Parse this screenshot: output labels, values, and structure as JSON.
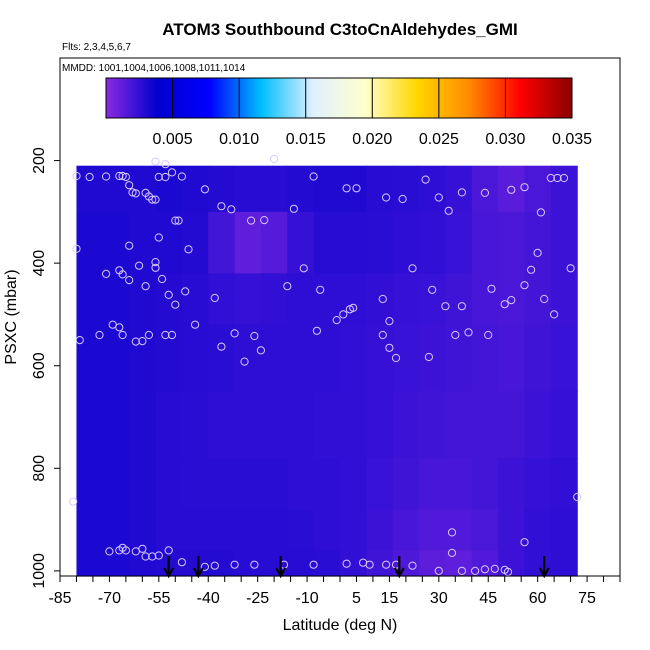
{
  "chart_data": {
    "type": "heatmap",
    "title": "ATOM3 Southbound C3toCnAldehydes_GMI",
    "subtitle_flights": "Flts: 2,3,4,5,6,7",
    "subtitle_dates": "MMDD: 1001,1004,1006,1008,1011,1014",
    "xlabel": "Latitude (deg N)",
    "ylabel": "PSXC (mbar)",
    "xlim": [
      -85,
      85
    ],
    "ylim": [
      1010,
      0
    ],
    "x_ticks": [
      -85,
      -70,
      -55,
      -40,
      -25,
      -10,
      5,
      15,
      30,
      45,
      60,
      75
    ],
    "y_ticks": [
      200,
      400,
      600,
      800,
      1000
    ],
    "colorbar": {
      "min": 0.0,
      "max": 0.035,
      "ticks": [
        0.005,
        0.01,
        0.015,
        0.02,
        0.025,
        0.03,
        0.035
      ],
      "tick_labels": [
        "0.005",
        "0.010",
        "0.015",
        "0.020",
        "0.025",
        "0.030",
        "0.035"
      ],
      "colors": [
        "#8a2be2",
        "#0000cd",
        "#0000ff",
        "#00bfff",
        "#e0f0ff",
        "#ffffcc",
        "#ffd700",
        "#ff8c00",
        "#ff0000",
        "#8b0000"
      ]
    },
    "field_lat_edges": [
      -80,
      -72,
      -64,
      -56,
      -48,
      -40,
      -32,
      -24,
      -16,
      -8,
      0,
      8,
      16,
      24,
      32,
      40,
      48,
      56,
      64,
      72
    ],
    "field_p_edges": [
      210,
      300,
      420,
      520,
      650,
      780,
      880,
      960,
      1010
    ],
    "field_values": [
      [
        0.003,
        0.003,
        0.003,
        0.0031,
        0.003,
        0.0029,
        0.0028,
        0.0028,
        0.0029,
        0.003,
        0.003,
        0.0028,
        0.0027,
        0.0026,
        0.0024,
        0.0018,
        0.0014,
        0.0018,
        0.0022
      ],
      [
        0.0031,
        0.0031,
        0.003,
        0.003,
        0.0029,
        0.002,
        0.0012,
        0.0015,
        0.0024,
        0.0028,
        0.0028,
        0.0027,
        0.0026,
        0.0025,
        0.0023,
        0.0019,
        0.0018,
        0.002,
        0.0022
      ],
      [
        0.0031,
        0.0031,
        0.003,
        0.0029,
        0.0028,
        0.0025,
        0.0024,
        0.0025,
        0.0026,
        0.0026,
        0.0026,
        0.0025,
        0.0024,
        0.0023,
        0.0021,
        0.0019,
        0.0018,
        0.002,
        0.0022
      ],
      [
        0.0031,
        0.0031,
        0.003,
        0.0029,
        0.0028,
        0.0027,
        0.0026,
        0.0026,
        0.0026,
        0.0026,
        0.0025,
        0.0024,
        0.0023,
        0.0022,
        0.0021,
        0.002,
        0.0019,
        0.0021,
        0.0023
      ],
      [
        0.0031,
        0.0031,
        0.003,
        0.0028,
        0.0027,
        0.0026,
        0.0026,
        0.0026,
        0.0026,
        0.0025,
        0.0025,
        0.0024,
        0.0022,
        0.0021,
        0.002,
        0.002,
        0.002,
        0.0022,
        0.0024
      ],
      [
        0.0031,
        0.0031,
        0.003,
        0.0028,
        0.0027,
        0.0027,
        0.0027,
        0.0027,
        0.0026,
        0.0026,
        0.0025,
        0.0023,
        0.0021,
        0.0019,
        0.0019,
        0.002,
        0.0022,
        0.0024,
        0.0025
      ],
      [
        0.0031,
        0.0031,
        0.003,
        0.0028,
        0.0028,
        0.0028,
        0.0028,
        0.0028,
        0.0027,
        0.0026,
        0.0025,
        0.0022,
        0.0019,
        0.0016,
        0.0016,
        0.0018,
        0.0022,
        0.0025,
        0.0026
      ],
      [
        0.0031,
        0.0031,
        0.003,
        0.0029,
        0.0029,
        0.0029,
        0.0028,
        0.0028,
        0.0028,
        0.0027,
        0.0025,
        0.0021,
        0.0017,
        0.0013,
        0.0012,
        0.0016,
        0.0022,
        0.0025,
        0.0026
      ]
    ],
    "observations": [
      {
        "lat": -80,
        "p": 230
      },
      {
        "lat": -76,
        "p": 232
      },
      {
        "lat": -71,
        "p": 231
      },
      {
        "lat": -67,
        "p": 230
      },
      {
        "lat": -66,
        "p": 230
      },
      {
        "lat": -65,
        "p": 232
      },
      {
        "lat": -64,
        "p": 248
      },
      {
        "lat": -63,
        "p": 262
      },
      {
        "lat": -62,
        "p": 264
      },
      {
        "lat": -59,
        "p": 263
      },
      {
        "lat": -58,
        "p": 270
      },
      {
        "lat": -57,
        "p": 276
      },
      {
        "lat": -56,
        "p": 276
      },
      {
        "lat": -56,
        "p": 202
      },
      {
        "lat": -55,
        "p": 232
      },
      {
        "lat": -53,
        "p": 232
      },
      {
        "lat": -53,
        "p": 207
      },
      {
        "lat": -51,
        "p": 223
      },
      {
        "lat": -50,
        "p": 317
      },
      {
        "lat": -49,
        "p": 317
      },
      {
        "lat": -48,
        "p": 231
      },
      {
        "lat": -41,
        "p": 256
      },
      {
        "lat": -36,
        "p": 289
      },
      {
        "lat": -33,
        "p": 295
      },
      {
        "lat": -27,
        "p": 317
      },
      {
        "lat": -23,
        "p": 316
      },
      {
        "lat": -20,
        "p": 197
      },
      {
        "lat": -14,
        "p": 294
      },
      {
        "lat": -8,
        "p": 231
      },
      {
        "lat": 2,
        "p": 254
      },
      {
        "lat": 5,
        "p": 254
      },
      {
        "lat": 14,
        "p": 272
      },
      {
        "lat": 19,
        "p": 275
      },
      {
        "lat": 26,
        "p": 237
      },
      {
        "lat": 30,
        "p": 272
      },
      {
        "lat": 33,
        "p": 298
      },
      {
        "lat": 37,
        "p": 262
      },
      {
        "lat": 44,
        "p": 263
      },
      {
        "lat": 52,
        "p": 257
      },
      {
        "lat": 56,
        "p": 252
      },
      {
        "lat": 61,
        "p": 301
      },
      {
        "lat": 64,
        "p": 234
      },
      {
        "lat": 66,
        "p": 234
      },
      {
        "lat": 68,
        "p": 234
      },
      {
        "lat": -80,
        "p": 372
      },
      {
        "lat": -71,
        "p": 421
      },
      {
        "lat": -67,
        "p": 414
      },
      {
        "lat": -66,
        "p": 422
      },
      {
        "lat": -64,
        "p": 433
      },
      {
        "lat": -64,
        "p": 366
      },
      {
        "lat": -61,
        "p": 405
      },
      {
        "lat": -59,
        "p": 445
      },
      {
        "lat": -56,
        "p": 398
      },
      {
        "lat": -56,
        "p": 409
      },
      {
        "lat": -55,
        "p": 350
      },
      {
        "lat": -54,
        "p": 431
      },
      {
        "lat": -52,
        "p": 462
      },
      {
        "lat": -50,
        "p": 481
      },
      {
        "lat": -47,
        "p": 455
      },
      {
        "lat": -46,
        "p": 373
      },
      {
        "lat": -44,
        "p": 520
      },
      {
        "lat": -38,
        "p": 468
      },
      {
        "lat": -16,
        "p": 445
      },
      {
        "lat": -11,
        "p": 410
      },
      {
        "lat": -6,
        "p": 452
      },
      {
        "lat": 3,
        "p": 490
      },
      {
        "lat": 4,
        "p": 487
      },
      {
        "lat": 1,
        "p": 500
      },
      {
        "lat": -1,
        "p": 511
      },
      {
        "lat": 13,
        "p": 470
      },
      {
        "lat": 15,
        "p": 513
      },
      {
        "lat": 22,
        "p": 410
      },
      {
        "lat": 28,
        "p": 452
      },
      {
        "lat": 32,
        "p": 484
      },
      {
        "lat": 37,
        "p": 484
      },
      {
        "lat": 46,
        "p": 450
      },
      {
        "lat": 50,
        "p": 480
      },
      {
        "lat": 52,
        "p": 472
      },
      {
        "lat": 56,
        "p": 443
      },
      {
        "lat": 58,
        "p": 413
      },
      {
        "lat": 60,
        "p": 380
      },
      {
        "lat": 62,
        "p": 470
      },
      {
        "lat": 65,
        "p": 500
      },
      {
        "lat": 70,
        "p": 410
      },
      {
        "lat": -79,
        "p": 550
      },
      {
        "lat": -73,
        "p": 540
      },
      {
        "lat": -69,
        "p": 520
      },
      {
        "lat": -67,
        "p": 525
      },
      {
        "lat": -66,
        "p": 540
      },
      {
        "lat": -62,
        "p": 553
      },
      {
        "lat": -60,
        "p": 552
      },
      {
        "lat": -58,
        "p": 540
      },
      {
        "lat": -53,
        "p": 540
      },
      {
        "lat": -51,
        "p": 540
      },
      {
        "lat": -36,
        "p": 563
      },
      {
        "lat": -32,
        "p": 537
      },
      {
        "lat": -29,
        "p": 592
      },
      {
        "lat": -26,
        "p": 542
      },
      {
        "lat": -24,
        "p": 570
      },
      {
        "lat": -7,
        "p": 532
      },
      {
        "lat": 13,
        "p": 540
      },
      {
        "lat": 15,
        "p": 565
      },
      {
        "lat": 17,
        "p": 585
      },
      {
        "lat": 27,
        "p": 583
      },
      {
        "lat": 35,
        "p": 540
      },
      {
        "lat": 39,
        "p": 535
      },
      {
        "lat": 45,
        "p": 540
      },
      {
        "lat": 72,
        "p": 856
      },
      {
        "lat": -81,
        "p": 865
      },
      {
        "lat": -70,
        "p": 962
      },
      {
        "lat": -67,
        "p": 960
      },
      {
        "lat": -66,
        "p": 955
      },
      {
        "lat": -65,
        "p": 960
      },
      {
        "lat": -62,
        "p": 962
      },
      {
        "lat": -60,
        "p": 957
      },
      {
        "lat": -59,
        "p": 972
      },
      {
        "lat": -57,
        "p": 972
      },
      {
        "lat": -55,
        "p": 970
      },
      {
        "lat": -52,
        "p": 960
      },
      {
        "lat": -48,
        "p": 983
      },
      {
        "lat": -41,
        "p": 992
      },
      {
        "lat": -38,
        "p": 990
      },
      {
        "lat": -32,
        "p": 988
      },
      {
        "lat": -26,
        "p": 988
      },
      {
        "lat": -17,
        "p": 988
      },
      {
        "lat": -8,
        "p": 988
      },
      {
        "lat": 2,
        "p": 986
      },
      {
        "lat": 7,
        "p": 984
      },
      {
        "lat": 9,
        "p": 988
      },
      {
        "lat": 14,
        "p": 988
      },
      {
        "lat": 17,
        "p": 988
      },
      {
        "lat": 22,
        "p": 990
      },
      {
        "lat": 30,
        "p": 1000
      },
      {
        "lat": 34,
        "p": 925
      },
      {
        "lat": 34,
        "p": 965
      },
      {
        "lat": 37,
        "p": 1000
      },
      {
        "lat": 41,
        "p": 1000
      },
      {
        "lat": 44,
        "p": 997
      },
      {
        "lat": 47,
        "p": 996
      },
      {
        "lat": 50,
        "p": 998
      },
      {
        "lat": 51,
        "p": 1002
      },
      {
        "lat": 56,
        "p": 944
      }
    ],
    "profile_markers_lat": [
      -52,
      -43,
      -18,
      18,
      62
    ]
  }
}
